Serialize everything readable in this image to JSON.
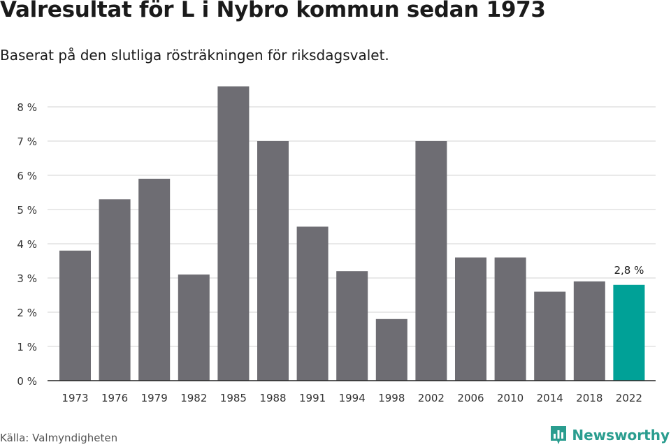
{
  "title": "Valresultat för L i Nybro kommun sedan 1973",
  "subtitle": "Baserat på den slutliga rösträkningen för riksdagsvalet.",
  "source": "Källa: Valmyndigheten",
  "brand": {
    "name": "Newsworthy",
    "icon": "newsworthy-logo-icon",
    "color": "#2a9d8f"
  },
  "chart_data": {
    "type": "bar",
    "categories": [
      "1973",
      "1976",
      "1979",
      "1982",
      "1985",
      "1988",
      "1991",
      "1994",
      "1998",
      "2002",
      "2006",
      "2010",
      "2014",
      "2018",
      "2022"
    ],
    "values": [
      3.8,
      5.3,
      5.9,
      3.1,
      8.6,
      7.0,
      4.5,
      3.2,
      1.8,
      7.0,
      3.6,
      3.6,
      2.6,
      2.9,
      2.8
    ],
    "y_ticks": [
      "0 %",
      "1 %",
      "2 %",
      "3 %",
      "4 %",
      "5 %",
      "6 %",
      "7 %",
      "8 %"
    ],
    "ylim": [
      0,
      9
    ],
    "grid": true,
    "bar_color": "#6e6d73",
    "highlight_color": "#00a197",
    "highlight_index": 14,
    "annotation": {
      "category": "2022",
      "text": "2,8 %"
    }
  }
}
